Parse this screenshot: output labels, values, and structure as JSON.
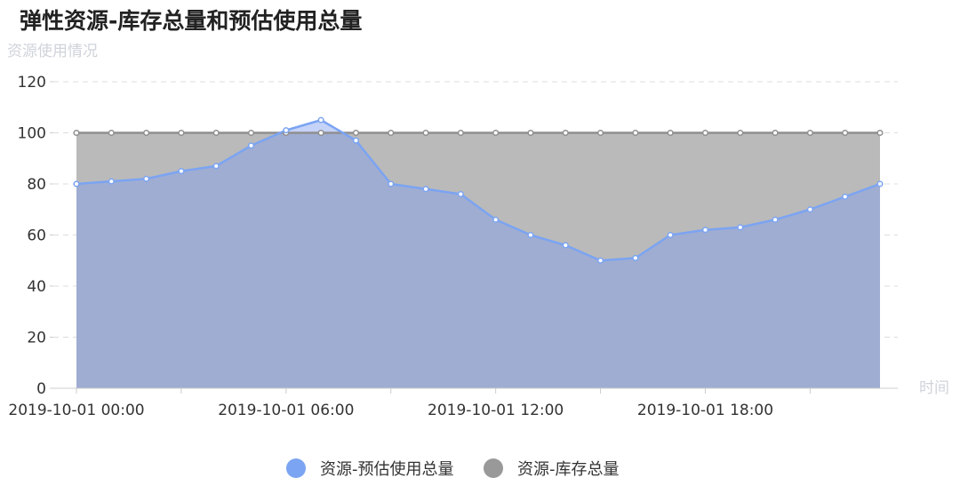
{
  "chart_data": {
    "type": "area",
    "title": "弹性资源-库存总量和预估使用总量",
    "ylabel": "资源使用情况",
    "xlabel": "时间",
    "ylim": [
      0,
      120
    ],
    "yticks": [
      0,
      20,
      40,
      60,
      80,
      100,
      120
    ],
    "x": [
      "00:00",
      "01:00",
      "02:00",
      "03:00",
      "04:00",
      "05:00",
      "06:00",
      "07:00",
      "08:00",
      "09:00",
      "10:00",
      "11:00",
      "12:00",
      "13:00",
      "14:00",
      "15:00",
      "16:00",
      "17:00",
      "18:00",
      "19:00",
      "20:00",
      "21:00",
      "22:00",
      "23:00"
    ],
    "x_tick_labels": [
      {
        "index": 0,
        "label": "2019-10-01 00:00"
      },
      {
        "index": 6,
        "label": "2019-10-01 06:00"
      },
      {
        "index": 12,
        "label": "2019-10-01 12:00"
      },
      {
        "index": 18,
        "label": "2019-10-01 18:00"
      }
    ],
    "x_tick_marks": [
      0,
      3,
      6,
      9,
      12,
      15,
      18,
      21,
      24
    ],
    "grid": "horizontal-dashed",
    "legend_position": "bottom-center",
    "series": [
      {
        "name": "资源-预估使用总量",
        "color": "#7ba4f2",
        "values": [
          80,
          81,
          82,
          85,
          87,
          95,
          101,
          105,
          97,
          80,
          78,
          76,
          66,
          60,
          56,
          50,
          51,
          60,
          62,
          63,
          66,
          70,
          75,
          80
        ]
      },
      {
        "name": "资源-库存总量",
        "color": "#999999",
        "values": [
          100,
          100,
          100,
          100,
          100,
          100,
          100,
          100,
          100,
          100,
          100,
          100,
          100,
          100,
          100,
          100,
          100,
          100,
          100,
          100,
          100,
          100,
          100,
          100
        ]
      }
    ]
  }
}
